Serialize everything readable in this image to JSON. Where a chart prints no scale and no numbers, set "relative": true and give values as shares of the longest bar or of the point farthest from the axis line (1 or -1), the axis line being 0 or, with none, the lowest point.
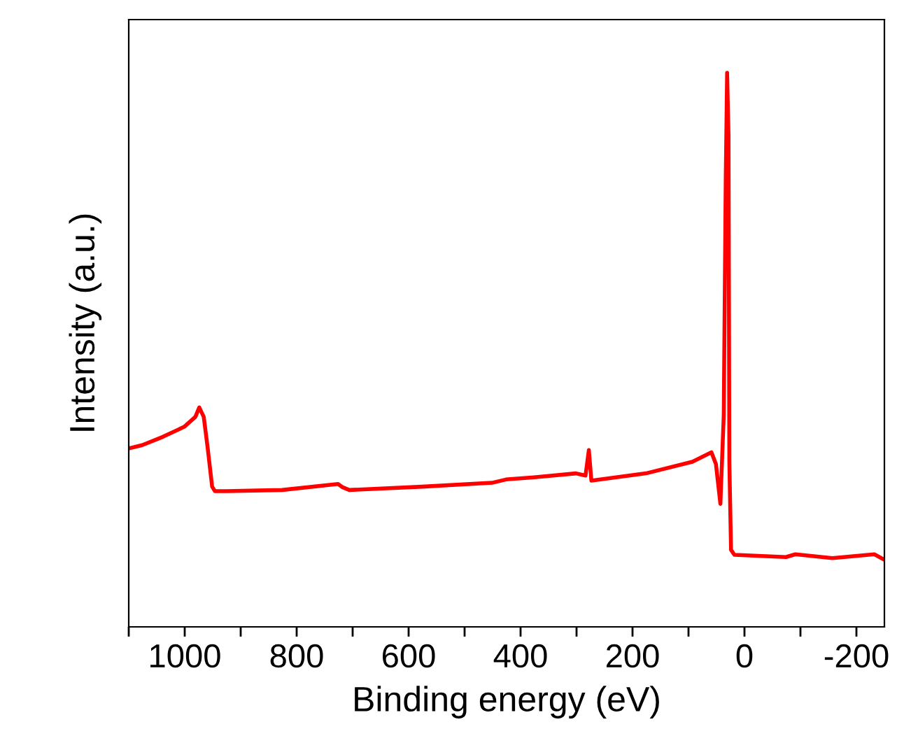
{
  "chart_data": {
    "type": "line",
    "xlabel": "Binding energy (eV)",
    "ylabel": "Intensity (a.u.)",
    "relative": true,
    "tick_labels": "x",
    "grid": false,
    "legend": false,
    "marker": "none",
    "line_style": "solid",
    "xlim": [
      1100,
      -250
    ],
    "xticks": [
      {
        "value": 1100,
        "label": null
      },
      1000,
      {
        "value": 900,
        "label": null
      },
      800,
      {
        "value": 700,
        "label": null
      },
      600,
      {
        "value": 500,
        "label": null
      },
      400,
      {
        "value": 300,
        "label": null
      },
      200,
      {
        "value": 100,
        "label": null
      },
      0,
      {
        "value": -100,
        "label": null
      },
      -200
    ],
    "series": [
      {
        "color": "#ff0000",
        "x": [
          1096,
          1076,
          1039,
          1001,
          981,
          974,
          966,
          959,
          951,
          946,
          926,
          826,
          726,
          718,
          706,
          576,
          451,
          426,
          376,
          301,
          284,
          278,
          273.5,
          176,
          93,
          59,
          51,
          43,
          37,
          33.5,
          31,
          28.5,
          27,
          24,
          18,
          -74,
          -91,
          -157,
          -232,
          -250
        ],
        "values": [
          0.323,
          0.328,
          0.343,
          0.361,
          0.379,
          0.396,
          0.379,
          0.323,
          0.253,
          0.245,
          0.245,
          0.247,
          0.258,
          0.252,
          0.247,
          0.253,
          0.26,
          0.266,
          0.27,
          0.277,
          0.273,
          0.319,
          0.264,
          0.277,
          0.298,
          0.315,
          0.294,
          0.222,
          0.382,
          0.803,
          1.0,
          0.887,
          0.298,
          0.139,
          0.13,
          0.126,
          0.131,
          0.124,
          0.131,
          0.121
        ]
      }
    ]
  }
}
